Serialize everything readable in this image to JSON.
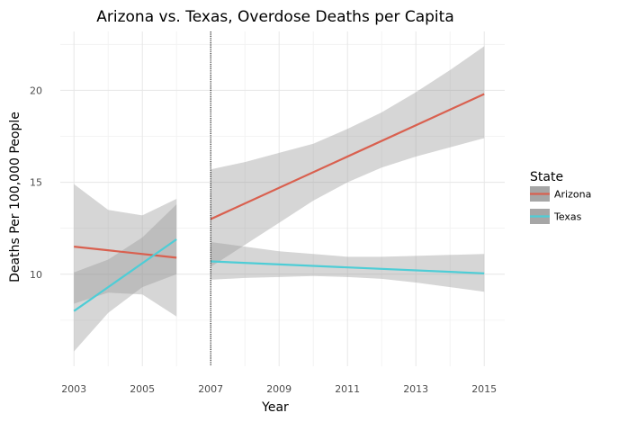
{
  "chart_data": {
    "type": "line",
    "title": "Arizona vs. Texas, Overdose Deaths per Capita",
    "xlabel": "Year",
    "ylabel": "Deaths Per 100,000 People",
    "xlim": [
      2002.6,
      2015.6
    ],
    "ylim": [
      5.0,
      23.2
    ],
    "x_ticks": [
      2003,
      2005,
      2007,
      2009,
      2011,
      2013,
      2015
    ],
    "y_ticks": [
      10,
      15,
      20
    ],
    "grid": true,
    "vline": {
      "x": 2007,
      "style": "dotted"
    },
    "legend": {
      "title": "State",
      "position": "right"
    },
    "series": [
      {
        "name": "Arizona",
        "color": "#d9604f",
        "segments": [
          {
            "x": [
              2003,
              2006
            ],
            "y": [
              11.5,
              10.9
            ],
            "band_x": [
              2003,
              2004,
              2005,
              2006
            ],
            "band_lower": [
              8.4,
              9.0,
              8.9,
              7.7
            ],
            "band_upper": [
              14.9,
              13.5,
              13.2,
              14.1
            ]
          },
          {
            "x": [
              2007,
              2015
            ],
            "y": [
              13.0,
              19.8
            ],
            "band_x": [
              2007,
              2008,
              2009,
              2010,
              2011,
              2012,
              2013,
              2014,
              2015
            ],
            "band_lower": [
              10.4,
              11.6,
              12.8,
              14.0,
              15.0,
              15.8,
              16.4,
              16.9,
              17.4
            ],
            "band_upper": [
              15.7,
              16.1,
              16.6,
              17.1,
              17.9,
              18.8,
              19.9,
              21.1,
              22.4
            ]
          }
        ]
      },
      {
        "name": "Texas",
        "color": "#4ecdd6",
        "segments": [
          {
            "x": [
              2003,
              2006
            ],
            "y": [
              8.0,
              11.9
            ],
            "band_x": [
              2003,
              2004,
              2005,
              2006
            ],
            "band_lower": [
              5.8,
              7.9,
              9.3,
              10.0
            ],
            "band_upper": [
              10.1,
              10.8,
              12.0,
              13.8
            ]
          },
          {
            "x": [
              2007,
              2015
            ],
            "y": [
              10.7,
              10.05
            ],
            "band_x": [
              2007,
              2008,
              2009,
              2010,
              2011,
              2012,
              2013,
              2014,
              2015
            ],
            "band_lower": [
              9.7,
              9.8,
              9.85,
              9.9,
              9.85,
              9.75,
              9.55,
              9.3,
              9.05
            ],
            "band_upper": [
              11.75,
              11.5,
              11.25,
              11.1,
              10.95,
              10.95,
              11.0,
              11.05,
              11.1
            ]
          }
        ]
      }
    ]
  }
}
